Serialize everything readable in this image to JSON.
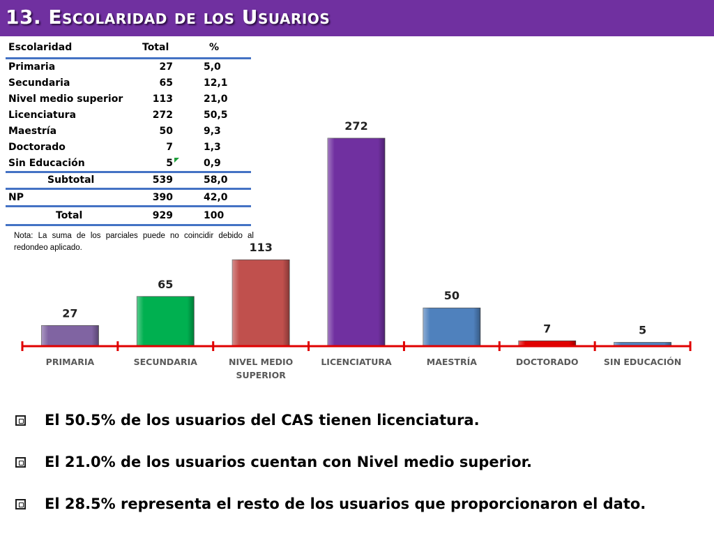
{
  "header": {
    "title": "13. Escolaridad de los Usuarios"
  },
  "table": {
    "headers": [
      "Escolaridad",
      "Total",
      "%"
    ],
    "rows": [
      [
        "Primaria",
        "27",
        "5,0"
      ],
      [
        "Secundaria",
        "65",
        "12,1"
      ],
      [
        "Nivel medio superior",
        "113",
        "21,0"
      ],
      [
        "Licenciatura",
        "272",
        "50,5"
      ],
      [
        "Maestría",
        "50",
        "9,3"
      ],
      [
        "Doctorado",
        "7",
        "1,3"
      ],
      [
        "Sin Educación",
        "5",
        "0,9"
      ]
    ],
    "subtotal": [
      "Subtotal",
      "539",
      "58,0"
    ],
    "np": [
      "NP",
      "390",
      "42,0"
    ],
    "total": [
      "Total",
      "929",
      "100"
    ]
  },
  "note": "Nota: La suma de los parciales puede no coincidir debido al redondeo aplicado.",
  "chart_data": {
    "type": "bar",
    "categories": [
      "PRIMARIA",
      "SECUNDARIA",
      "NIVEL MEDIO SUPERIOR",
      "LICENCIATURA",
      "MAESTRÍA",
      "DOCTORADO",
      "SIN EDUCACIÓN"
    ],
    "category_lines": [
      [
        "PRIMARIA"
      ],
      [
        "SECUNDARIA"
      ],
      [
        "NIVEL MEDIO",
        "SUPERIOR"
      ],
      [
        "LICENCIATURA"
      ],
      [
        "MAESTRÍA"
      ],
      [
        "DOCTORADO"
      ],
      [
        "SIN EDUCACIÓN"
      ]
    ],
    "values": [
      27,
      65,
      113,
      272,
      50,
      7,
      5
    ],
    "data_labels": [
      "27",
      "65",
      "113",
      "272",
      "50",
      "7",
      "5"
    ],
    "colors": [
      "#8064a2",
      "#00b050",
      "#c0504d",
      "#7030a0",
      "#4f81bd",
      "#e00000",
      "#4f81bd"
    ],
    "axis_color": "#e00000",
    "ylim": [
      0,
      272
    ],
    "legend": "none",
    "grid": false
  },
  "bullets": [
    "El 50.5% de los usuarios del CAS tienen licenciatura.",
    "El 21.0% de los usuarios cuentan con Nivel medio superior.",
    "El  28.5% representa el resto de los usuarios que proporcionaron el dato."
  ]
}
